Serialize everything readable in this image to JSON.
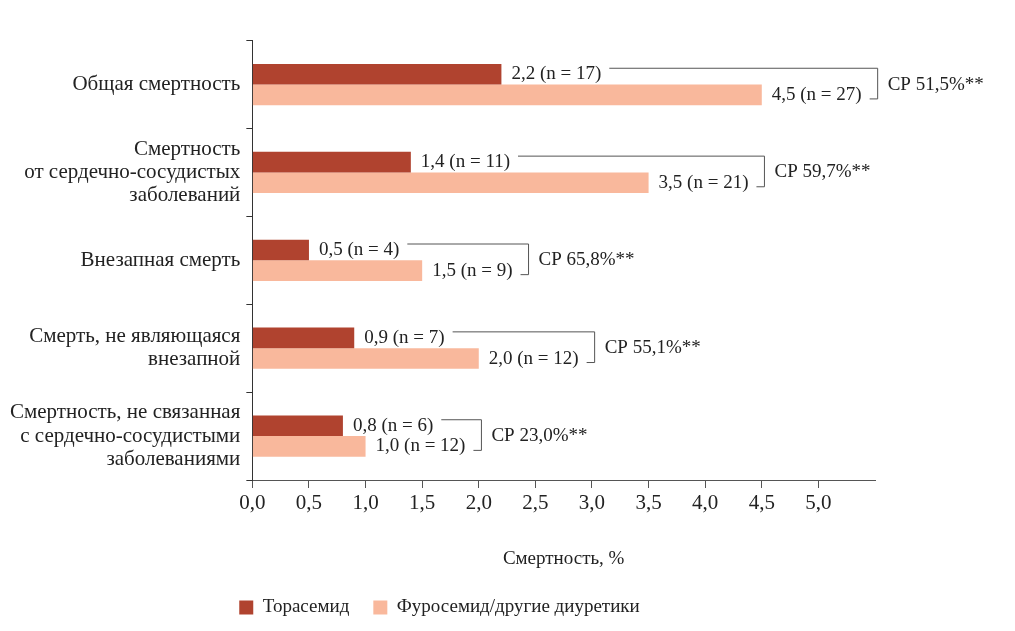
{
  "chart_data": {
    "type": "bar",
    "orientation": "horizontal",
    "xlabel": "Смертность, %",
    "categories": [
      "Общая смертность",
      "Смертность\nот сердечно-сосудистых\nзаболеваний",
      "Внезапная смерть",
      "Смерть, не являющаяся\nвнезапной",
      "Смертность, не связанная\nс сердечно-сосудистыми\nзаболеваниями"
    ],
    "series": [
      {
        "name": "Торасемид",
        "color": "#b0432f",
        "values": [
          2.2,
          1.4,
          0.5,
          0.9,
          0.8
        ],
        "value_labels": [
          "2,2 (n = 17)",
          "1,4 (n = 11)",
          "0,5 (n = 4)",
          "0,9 (n = 7)",
          "0,8 (n = 6)"
        ]
      },
      {
        "name": "Фуросемид/другие диуретики",
        "color": "#f9b89c",
        "values": [
          4.5,
          3.5,
          1.5,
          2.0,
          1.0
        ],
        "value_labels": [
          "4,5 (n = 27)",
          "3,5 (n = 21)",
          "1,5 (n = 9)",
          "2,0 (n = 12)",
          "1,0 (n = 12)"
        ]
      }
    ],
    "xlim": [
      0,
      5.5
    ],
    "xticks": [
      {
        "value": 0,
        "label": "0,0"
      },
      {
        "value": 0.5,
        "label": "0,5"
      },
      {
        "value": 1,
        "label": "1,0"
      },
      {
        "value": 1.5,
        "label": "1,5"
      },
      {
        "value": 2,
        "label": "2,0"
      },
      {
        "value": 2.5,
        "label": "2,5"
      },
      {
        "value": 3,
        "label": "3,0"
      },
      {
        "value": 3.5,
        "label": "3,5"
      },
      {
        "value": 4,
        "label": "4,0"
      },
      {
        "value": 4.5,
        "label": "4,5"
      },
      {
        "value": 5,
        "label": "5,0"
      }
    ],
    "annotations": [
      "СР 51,5%**",
      "СР 59,7%**",
      "СР 65,8%**",
      "СР 55,1%**",
      "СР 23,0%**"
    ],
    "grid": false,
    "legend": "bottom"
  }
}
